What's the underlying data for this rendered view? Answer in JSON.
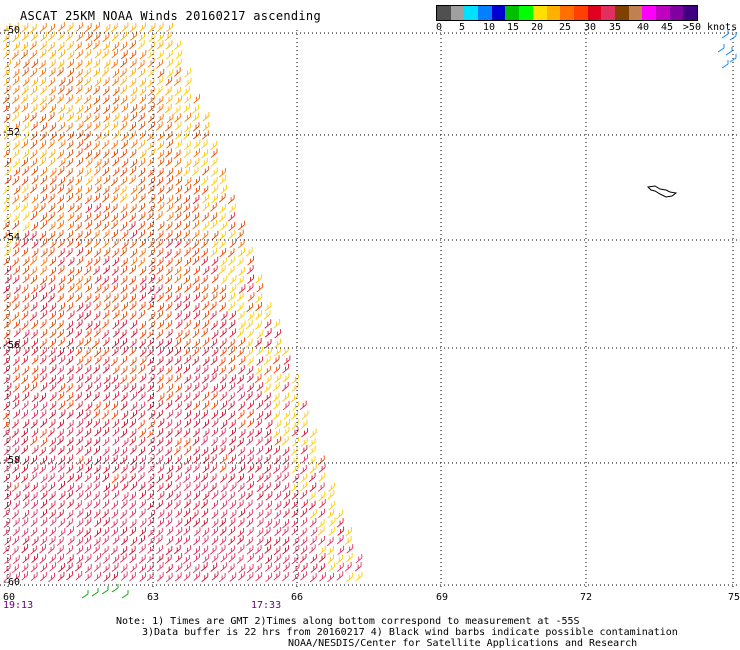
{
  "header": {
    "title": "ASCAT 25KM NOAA Winds 20160217 ascending"
  },
  "legend": {
    "unit": "knots",
    "colors": [
      "#505050",
      "#a0a0a0",
      "#00e0ff",
      "#0080ff",
      "#0000d0",
      "#00c000",
      "#00ff00",
      "#ffe000",
      "#ffb000",
      "#ff7000",
      "#ff4000",
      "#e00020",
      "#e03060",
      "#804000",
      "#c08050",
      "#ff00ff",
      "#c000c0",
      "#8000a0",
      "#400080"
    ],
    "ticks": [
      "0",
      "5",
      "10",
      "15",
      "20",
      "25",
      "30",
      "35",
      "40",
      "45",
      ">50 knots"
    ]
  },
  "axes": {
    "lat_labels": [
      "-50",
      "-52",
      "-54",
      "-56",
      "-58",
      "-60"
    ],
    "lon_labels": [
      "60",
      "63",
      "66",
      "69",
      "72",
      "75"
    ],
    "times": [
      "19:13",
      "17:33"
    ]
  },
  "notes": {
    "line1": "Note: 1) Times are GMT 2)Times along bottom correspond to measurement at -55S",
    "line2": "3)Data buffer is 22 hrs from 20160217 4) Black wind barbs indicate possible contamination",
    "line3": "NOAA/NESDIS/Center for Satellite Applications and Research"
  }
}
